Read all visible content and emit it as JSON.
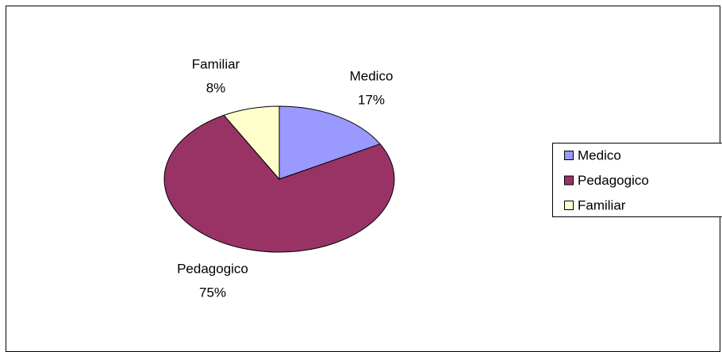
{
  "chart_data": {
    "type": "pie",
    "categories": [
      "Medico",
      "Pedagogico",
      "Familiar"
    ],
    "values": [
      17,
      75,
      8
    ],
    "value_labels": [
      "17%",
      "75%",
      "8%"
    ],
    "colors": [
      "#9999ff",
      "#993366",
      "#ffffcc"
    ],
    "legend": "right"
  }
}
